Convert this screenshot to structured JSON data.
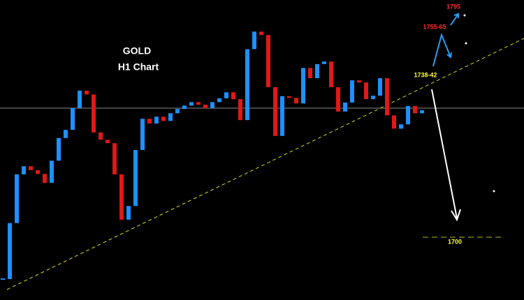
{
  "chart_data": {
    "type": "candlestick",
    "title": "GOLD",
    "subtitle": "H1 Chart",
    "up_color": "#1e90ff",
    "down_color": "#e01818",
    "ylim": [
      1685.3,
      1755.5
    ],
    "values": [
      1690.2,
      1703.3,
      1714.7,
      1716.6,
      1715.7,
      1714.8,
      1712.7,
      1717.9,
      1723.2,
      1725.1,
      1730.2,
      1734.3,
      1733.4,
      1724.5,
      1722.8,
      1722.0,
      1714.7,
      1704.1,
      1707.3,
      1720.4,
      1727.7,
      1726.6,
      1728.2,
      1727.2,
      1729.0,
      1730.0,
      1730.8,
      1731.6,
      1731.0,
      1730.2,
      1731.6,
      1732.5,
      1733.9,
      1732.3,
      1727.4,
      1744.0,
      1748.1,
      1747.3,
      1735.1,
      1723.7,
      1733.0,
      1732.6,
      1731.3,
      1739.6,
      1737.2,
      1740.5,
      1741.1,
      1735.1,
      1729.4,
      1731.5,
      1736.7,
      1736.2,
      1732.3,
      1733.1,
      1737.2,
      1728.5,
      1725.4,
      1726.4,
      1730.7,
      1729.0,
      1729.7
    ],
    "annotations": [
      {
        "text": "1795",
        "color": "#ff2a2a"
      },
      {
        "text": "1755-65",
        "color": "#ff2a2a"
      },
      {
        "text": "1738-42",
        "color": "#ffff33"
      },
      {
        "text": "1700",
        "color": "#ffff33"
      }
    ]
  }
}
